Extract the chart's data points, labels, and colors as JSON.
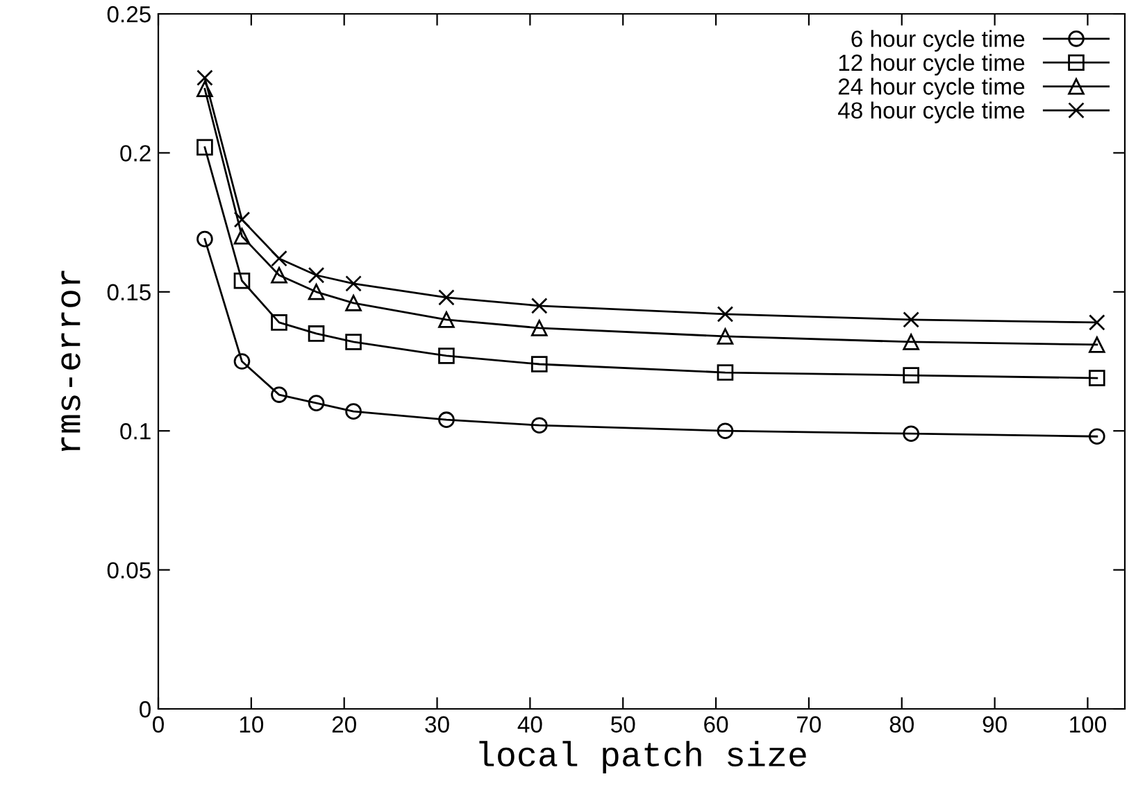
{
  "chart_data": {
    "type": "line",
    "xlabel": "local patch size",
    "ylabel": "rms-error",
    "x": [
      5,
      9,
      13,
      17,
      21,
      31,
      41,
      61,
      81,
      101
    ],
    "series": [
      {
        "name": "6 hour cycle time",
        "color": "#000000",
        "marker": "circle",
        "values": [
          0.169,
          0.125,
          0.113,
          0.11,
          0.107,
          0.104,
          0.102,
          0.1,
          0.099,
          0.098
        ]
      },
      {
        "name": "12 hour cycle time",
        "color": "#000000",
        "marker": "square",
        "values": [
          0.202,
          0.154,
          0.139,
          0.135,
          0.132,
          0.127,
          0.124,
          0.121,
          0.12,
          0.119
        ]
      },
      {
        "name": "24 hour cycle time",
        "color": "#000000",
        "marker": "triangle",
        "values": [
          0.223,
          0.17,
          0.156,
          0.15,
          0.146,
          0.14,
          0.137,
          0.134,
          0.132,
          0.131
        ]
      },
      {
        "name": "48 hour cycle time",
        "color": "#000000",
        "marker": "cross",
        "values": [
          0.227,
          0.176,
          0.162,
          0.156,
          0.153,
          0.148,
          0.145,
          0.142,
          0.14,
          0.139
        ]
      }
    ],
    "xlim": [
      0,
      104
    ],
    "xticks": [
      0,
      10,
      20,
      30,
      40,
      50,
      60,
      70,
      80,
      90,
      100
    ],
    "ylim": [
      0,
      0.25
    ],
    "yticks": [
      0,
      0.05,
      0.1,
      0.15,
      0.2,
      0.25
    ],
    "grid": false,
    "legend": "top right",
    "line_style": "solid"
  }
}
